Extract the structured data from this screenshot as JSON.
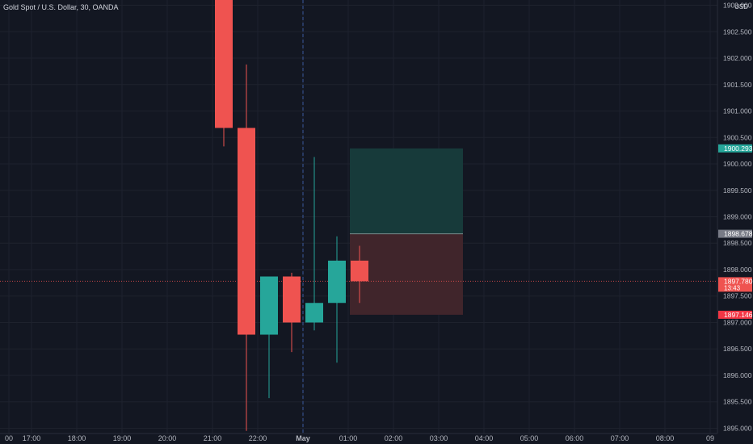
{
  "header": {
    "title": "Gold Spot / U.S. Dollar, 30, OANDA",
    "currency": "USD"
  },
  "chart_data": {
    "type": "candlestick",
    "title": "Gold Spot / U.S. Dollar, 30, OANDA",
    "ylim": [
      1894.9,
      1903.1
    ],
    "y_ticks": [
      "1903.000",
      "1902.500",
      "1902.000",
      "1901.500",
      "1901.000",
      "1900.500",
      "1900.000",
      "1899.500",
      "1899.000",
      "1898.500",
      "1898.000",
      "1897.500",
      "1897.000",
      "1896.500",
      "1896.000",
      "1895.500",
      "1895.000"
    ],
    "x_ticks": [
      {
        "label": "00",
        "slot": -9.5
      },
      {
        "label": "17:00",
        "slot": -8.5
      },
      {
        "label": "18:00",
        "slot": -6.5
      },
      {
        "label": "19:00",
        "slot": -4.5
      },
      {
        "label": "20:00",
        "slot": -2.5
      },
      {
        "label": "21:00",
        "slot": -0.5
      },
      {
        "label": "22:00",
        "slot": 1.5
      },
      {
        "label": "May",
        "slot": 3.5
      },
      {
        "label": "01:00",
        "slot": 5.5
      },
      {
        "label": "02:00",
        "slot": 7.5
      },
      {
        "label": "03:00",
        "slot": 9.5
      },
      {
        "label": "04:00",
        "slot": 11.5
      },
      {
        "label": "05:00",
        "slot": 13.5
      },
      {
        "label": "06:00",
        "slot": 15.5
      },
      {
        "label": "07:00",
        "slot": 17.5
      },
      {
        "label": "08:00",
        "slot": 19.5
      },
      {
        "label": "09",
        "slot": 21.5
      }
    ],
    "candles": [
      {
        "slot": 0,
        "open": 1903.2,
        "high": 1903.2,
        "low": 1900.33,
        "close": 1900.68
      },
      {
        "slot": 1,
        "open": 1900.68,
        "high": 1901.88,
        "low": 1894.95,
        "close": 1896.77
      },
      {
        "slot": 2,
        "open": 1896.77,
        "high": 1897.87,
        "low": 1895.57,
        "close": 1897.87
      },
      {
        "slot": 3,
        "open": 1897.87,
        "high": 1897.94,
        "low": 1896.44,
        "close": 1897.0
      },
      {
        "slot": 4,
        "open": 1897.0,
        "high": 1900.13,
        "low": 1896.85,
        "close": 1897.37
      },
      {
        "slot": 5,
        "open": 1897.37,
        "high": 1898.63,
        "low": 1896.24,
        "close": 1898.17
      },
      {
        "slot": 6,
        "open": 1898.17,
        "high": 1898.45,
        "low": 1897.37,
        "close": 1897.78
      }
    ],
    "session_break_slot": 3.5,
    "position": {
      "from_slot": 5.5,
      "to_slot": 10.5,
      "entry": 1898.678,
      "target": 1900.293,
      "stop": 1897.146
    },
    "price_labels": [
      {
        "value": 1900.293,
        "text": "1900.293",
        "color": "#26a69a"
      },
      {
        "value": 1898.678,
        "text": "1898.678",
        "color": "#787b86"
      },
      {
        "value": 1897.78,
        "text": "1897.780",
        "sub": "13:43",
        "color": "#ef5350"
      },
      {
        "value": 1897.146,
        "text": "1897.146",
        "color": "#f23645"
      }
    ],
    "colors": {
      "background": "#131722",
      "grid": "#1e222d",
      "up": "#26a69a",
      "down": "#ef5350",
      "text": "#b2b5be",
      "target_zone": "#173a3a",
      "stop_zone": "#40252b"
    },
    "grid": true
  }
}
